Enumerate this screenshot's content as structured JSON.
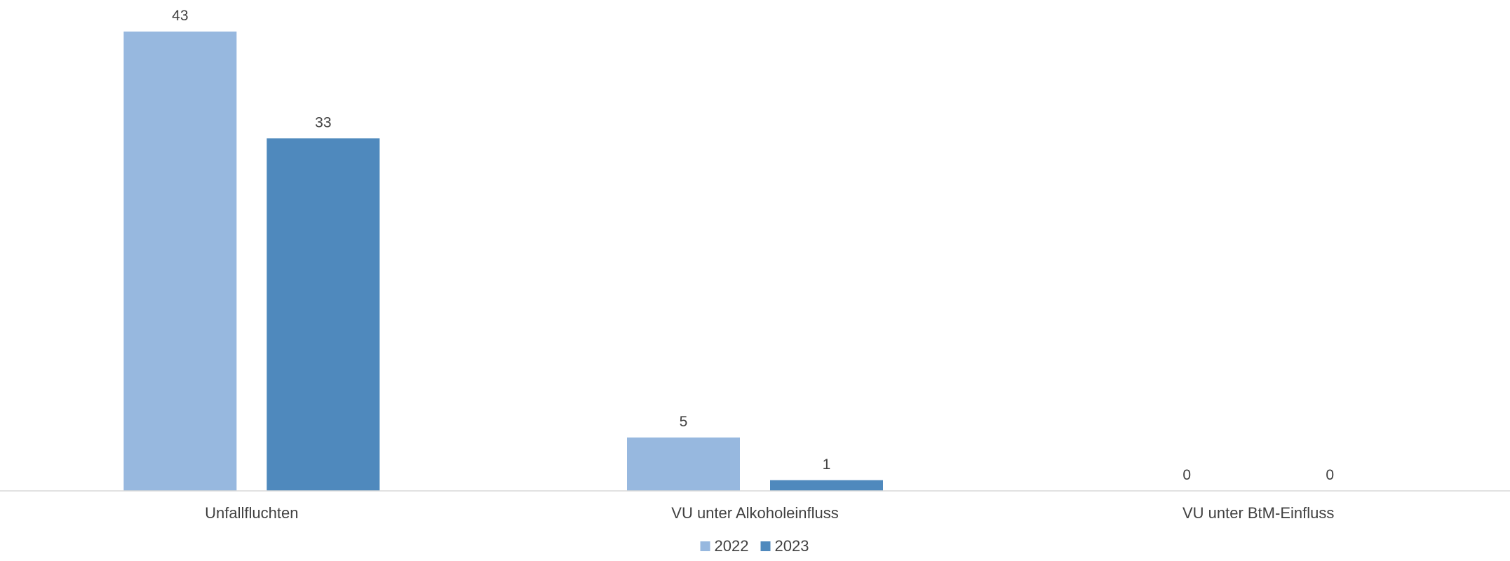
{
  "chart_data": {
    "type": "bar",
    "categories": [
      "Unfallfluchten",
      "VU unter Alkoholeinfluss",
      "VU unter BtM-Einfluss"
    ],
    "series": [
      {
        "name": "2022",
        "values": [
          43,
          5,
          0
        ],
        "color": "#97B8DF"
      },
      {
        "name": "2023",
        "values": [
          33,
          1,
          0
        ],
        "color": "#4F89BD"
      }
    ],
    "ylim": [
      0,
      43
    ],
    "grid": false,
    "legend": "bottom-center",
    "axis_color": "#D9D9D9",
    "text_color": "#404040"
  }
}
